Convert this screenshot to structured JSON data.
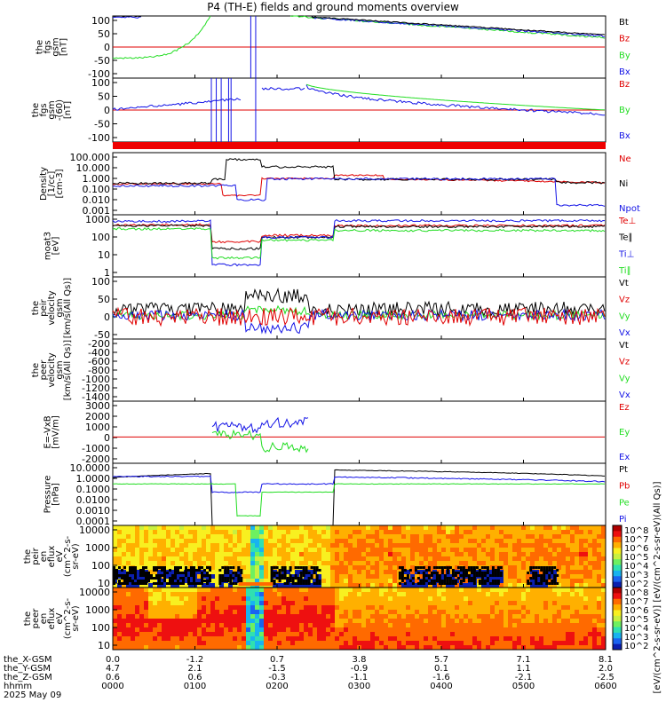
{
  "title": "P4 (TH-E) fields and ground moments overview",
  "colors": {
    "black": "#000000",
    "red": "#e00000",
    "green": "#22dd22",
    "blue": "#1414e6",
    "redline": "#ee0000"
  },
  "chart_data": [
    {
      "type": "line",
      "ylabel": [
        "the",
        "fgs",
        "gsm",
        "[nT]"
      ],
      "yticks": [
        "100",
        "50",
        "0",
        "-50",
        "-100"
      ],
      "ylim": [
        -100,
        100
      ],
      "legend": [
        {
          "label": "Bt",
          "color": "black"
        },
        {
          "label": "Bz",
          "color": "red"
        },
        {
          "label": "By",
          "color": "green"
        },
        {
          "label": "Bx",
          "color": "blue"
        }
      ]
    },
    {
      "type": "line",
      "ylabel": [
        "the",
        "fgs",
        "gsm",
        "-(60)",
        "[nT]"
      ],
      "yticks": [
        "100",
        "50",
        "0",
        "-50",
        "-100"
      ],
      "ylim": [
        -120,
        120
      ],
      "legend": [
        {
          "label": "Bz",
          "color": "red"
        },
        {
          "label": "By",
          "color": "green"
        },
        {
          "label": "Bx",
          "color": "blue"
        }
      ]
    },
    {
      "type": "line",
      "ylabel": [
        "Density",
        "[1/cc]",
        "[cm-3]"
      ],
      "yticks": [
        "100.000",
        "10.000",
        "1.000",
        "0.100",
        "0.010",
        "0.001"
      ],
      "scale": "log",
      "legend": [
        {
          "label": "Ne",
          "color": "red"
        },
        {
          "label": "Ni",
          "color": "black"
        },
        {
          "label": "Npot",
          "color": "blue"
        }
      ]
    },
    {
      "type": "line",
      "ylabel": [
        "moat3",
        "[eV]"
      ],
      "yticks": [
        "1000",
        "100",
        "10",
        "1"
      ],
      "scale": "log",
      "legend": [
        {
          "label": "Te⊥",
          "color": "red"
        },
        {
          "label": "Te∥",
          "color": "black"
        },
        {
          "label": "Ti⊥",
          "color": "blue"
        },
        {
          "label": "Ti∥",
          "color": "green"
        }
      ]
    },
    {
      "type": "line",
      "ylabel": [
        "the",
        "peir",
        "velocity",
        "gsm",
        "[km/s(All Qs)]"
      ],
      "yticks": [
        "100",
        "50",
        "0",
        "-50"
      ],
      "ylim": [
        -75,
        120
      ],
      "legend": [
        {
          "label": "Vt",
          "color": "black"
        },
        {
          "label": "Vz",
          "color": "red"
        },
        {
          "label": "Vy",
          "color": "green"
        },
        {
          "label": "Vx",
          "color": "blue"
        }
      ]
    },
    {
      "type": "line",
      "ylabel": [
        "the",
        "peer",
        "velocity",
        "gsm",
        "[km/s(All Qs)]"
      ],
      "yticks": [
        "-200",
        "-400",
        "-600",
        "-800",
        "-1000",
        "-1200",
        "-1400"
      ],
      "ylim": [
        -1500,
        0
      ],
      "legend": [
        {
          "label": "Vt",
          "color": "black"
        },
        {
          "label": "Vz",
          "color": "red"
        },
        {
          "label": "Vy",
          "color": "green"
        },
        {
          "label": "Vx",
          "color": "blue"
        }
      ]
    },
    {
      "type": "line",
      "ylabel": [
        "E=-VxB",
        "[mV/m]"
      ],
      "yticks": [
        "3000",
        "2000",
        "1000",
        "0",
        "-1000",
        "-2000"
      ],
      "ylim": [
        -2200,
        3000
      ],
      "legend": [
        {
          "label": "Ez",
          "color": "red"
        },
        {
          "label": "Ey",
          "color": "green"
        },
        {
          "label": "Ex",
          "color": "blue"
        }
      ]
    },
    {
      "type": "line",
      "ylabel": [
        "Pressure",
        "[nPa]"
      ],
      "yticks": [
        "10.0000",
        "1.0000",
        "0.1000",
        "0.0100",
        "0.0010",
        "0.0001"
      ],
      "scale": "log",
      "legend": [
        {
          "label": "Pt",
          "color": "black"
        },
        {
          "label": "Pb",
          "color": "red"
        },
        {
          "label": "Pe",
          "color": "green"
        },
        {
          "label": "Pi",
          "color": "blue"
        }
      ]
    },
    {
      "type": "heatmap",
      "ylabel": [
        "the",
        "peir",
        "en",
        "eflux",
        "eV",
        "(cm^2-s-",
        "sr-eV)"
      ],
      "yticks": [
        "10000",
        "1000",
        "100",
        "10"
      ],
      "scale": "log",
      "colorbar_ticks": [
        "10^8",
        "10^7",
        "10^6",
        "10^5",
        "10^4",
        "10^3",
        "10^2"
      ]
    },
    {
      "type": "heatmap",
      "ylabel": [
        "the",
        "peer",
        "en",
        "eflux",
        "eV",
        "(cm^2-s-",
        "sr-eV)"
      ],
      "yticks": [
        "10000",
        "1000",
        "100",
        "10"
      ],
      "scale": "log",
      "colorbar_ticks": [
        "10^8",
        "10^7",
        "10^6",
        "10^5",
        "10^4",
        "10^3",
        "10^2"
      ]
    }
  ],
  "colorbar_label": "[eV/(cm^2-s-sr-eV)] [eV/(cm^2-s-sr-eV)(All Qs)]",
  "x_axis": {
    "row_labels": [
      "the_X-GSM",
      "the_Y-GSM",
      "the_Z-GSM",
      "hhmm",
      "2025 May 09"
    ],
    "columns": [
      [
        "0.0",
        "4.7",
        "0.6",
        "0000"
      ],
      [
        "-1.2",
        "2.1",
        "0.6",
        "0100"
      ],
      [
        "0.7",
        "-1.5",
        "-0.3",
        "0200"
      ],
      [
        "3.8",
        "-0.9",
        "-1.1",
        "0300"
      ],
      [
        "5.7",
        "0.1",
        "-1.6",
        "0400"
      ],
      [
        "7.1",
        "1.1",
        "-2.1",
        "0500"
      ],
      [
        "8.1",
        "2.0",
        "-2.5",
        "0600"
      ]
    ]
  }
}
